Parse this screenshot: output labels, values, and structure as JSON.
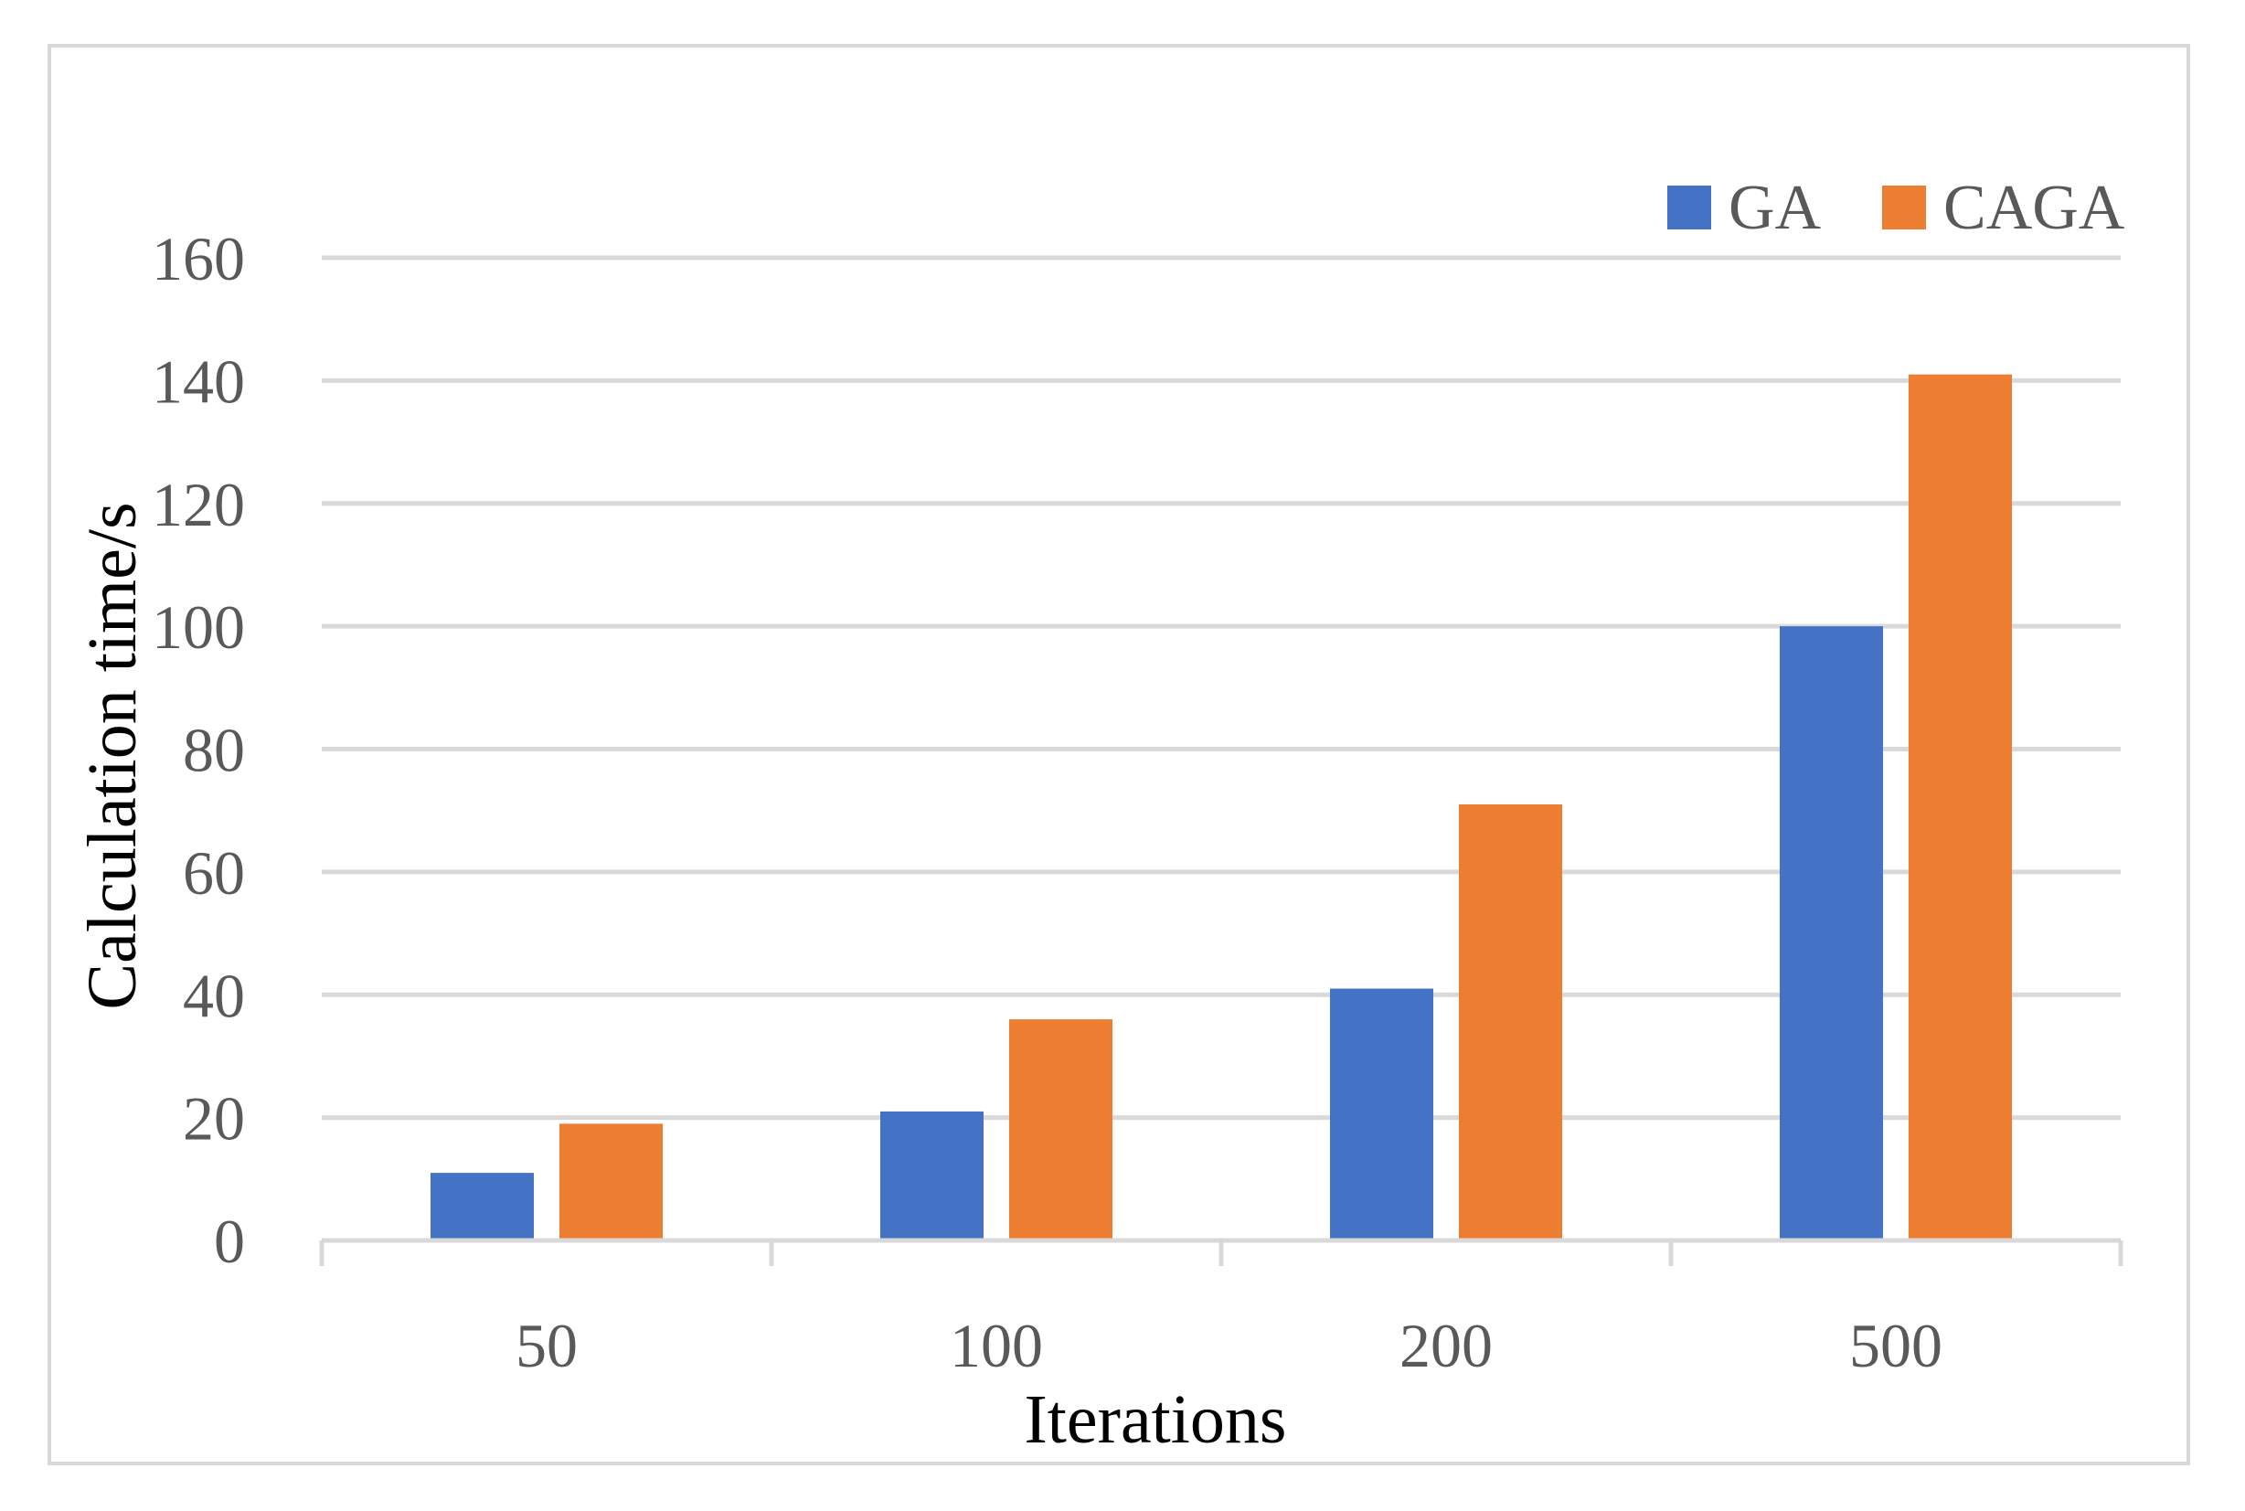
{
  "chart_data": {
    "type": "bar",
    "title": "",
    "xlabel": "Iterations",
    "ylabel": "Calculation time/s",
    "categories": [
      "50",
      "100",
      "200",
      "500"
    ],
    "series": [
      {
        "name": "GA",
        "color": "#4472c4",
        "values": [
          11,
          21,
          41,
          100
        ]
      },
      {
        "name": "CAGA",
        "color": "#ed7d31",
        "values": [
          19,
          36,
          71,
          141
        ]
      }
    ],
    "ylim": [
      0,
      160
    ],
    "yticks": [
      0,
      20,
      40,
      60,
      80,
      100,
      120,
      140,
      160
    ],
    "ytick_labels": [
      "0",
      "20",
      "40",
      "60",
      "80",
      "100",
      "120",
      "140",
      "160"
    ],
    "grid": true,
    "legend": "top-right",
    "gridline_color": "#d9d9d9",
    "axis_color": "#d9d9d9"
  }
}
